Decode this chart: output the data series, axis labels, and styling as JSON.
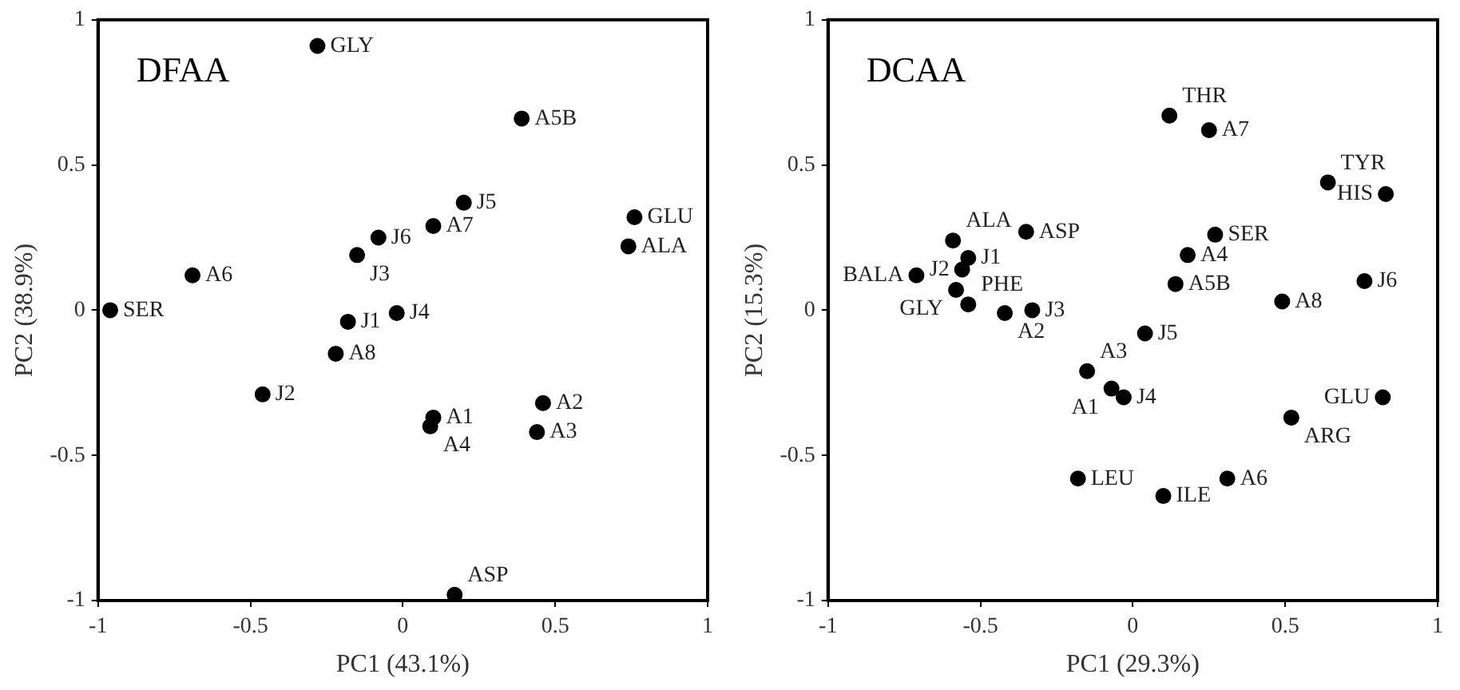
{
  "chart_data": [
    {
      "type": "scatter",
      "title": "DFAA",
      "xlabel": "PC1 (43.1%)",
      "ylabel": "PC2 (38.9%)",
      "xlim": [
        -1,
        1
      ],
      "ylim": [
        -1,
        1
      ],
      "xticks": [
        -1,
        -0.5,
        0,
        0.5,
        1
      ],
      "yticks": [
        -1,
        -0.5,
        0,
        0.5,
        1
      ],
      "grid": false,
      "legend": false,
      "marker": "circle",
      "series": [
        {
          "name": "GLY",
          "color": "#000000",
          "x": [
            -0.28
          ],
          "values": [
            0.91
          ]
        },
        {
          "name": "A5B",
          "color": "#000000",
          "x": [
            0.39
          ],
          "values": [
            0.66
          ]
        },
        {
          "name": "J5",
          "color": "#000000",
          "x": [
            0.2
          ],
          "values": [
            0.37
          ]
        },
        {
          "name": "GLU",
          "color": "#000000",
          "x": [
            0.76
          ],
          "values": [
            0.32
          ]
        },
        {
          "name": "A7",
          "color": "#000000",
          "x": [
            0.1
          ],
          "values": [
            0.29
          ]
        },
        {
          "name": "J6",
          "color": "#000000",
          "x": [
            -0.08
          ],
          "values": [
            0.25
          ]
        },
        {
          "name": "ALA",
          "color": "#000000",
          "x": [
            0.74
          ],
          "values": [
            0.22
          ]
        },
        {
          "name": "J3",
          "color": "#000000",
          "x": [
            -0.15
          ],
          "values": [
            0.19
          ]
        },
        {
          "name": "A6",
          "color": "#000000",
          "x": [
            -0.69
          ],
          "values": [
            0.12
          ]
        },
        {
          "name": "SER",
          "color": "#000000",
          "x": [
            -0.96
          ],
          "values": [
            0.0
          ]
        },
        {
          "name": "J4",
          "color": "#000000",
          "x": [
            -0.02
          ],
          "values": [
            -0.01
          ]
        },
        {
          "name": "J1",
          "color": "#000000",
          "x": [
            -0.18
          ],
          "values": [
            -0.04
          ]
        },
        {
          "name": "A8",
          "color": "#000000",
          "x": [
            -0.22
          ],
          "values": [
            -0.15
          ]
        },
        {
          "name": "J2",
          "color": "#000000",
          "x": [
            -0.46
          ],
          "values": [
            -0.29
          ]
        },
        {
          "name": "A1",
          "color": "#000000",
          "x": [
            0.1
          ],
          "values": [
            -0.37
          ]
        },
        {
          "name": "A4",
          "color": "#000000",
          "x": [
            0.09
          ],
          "values": [
            -0.4
          ]
        },
        {
          "name": "A2",
          "color": "#000000",
          "x": [
            0.46
          ],
          "values": [
            -0.32
          ]
        },
        {
          "name": "A3",
          "color": "#000000",
          "x": [
            0.44
          ],
          "values": [
            -0.42
          ]
        },
        {
          "name": "ASP",
          "color": "#000000",
          "x": [
            0.17
          ],
          "values": [
            -0.98
          ]
        }
      ]
    },
    {
      "type": "scatter",
      "title": "DCAA",
      "xlabel": "PC1 (29.3%)",
      "ylabel": "PC2 (15.3%)",
      "xlim": [
        -1,
        1
      ],
      "ylim": [
        -1,
        1
      ],
      "xticks": [
        -1,
        -0.5,
        0,
        0.5,
        1
      ],
      "yticks": [
        -1,
        -0.5,
        0,
        0.5,
        1
      ],
      "grid": false,
      "legend": false,
      "marker": "circle",
      "series": [
        {
          "name": "THR",
          "color": "#000000",
          "x": [
            0.12
          ],
          "values": [
            0.67
          ]
        },
        {
          "name": "A7",
          "color": "#000000",
          "x": [
            0.25
          ],
          "values": [
            0.62
          ]
        },
        {
          "name": "TYR",
          "color": "#000000",
          "x": [
            0.64
          ],
          "values": [
            0.44
          ]
        },
        {
          "name": "HIS",
          "color": "#000000",
          "x": [
            0.83
          ],
          "values": [
            0.4
          ]
        },
        {
          "name": "ASP",
          "color": "#000000",
          "x": [
            -0.35
          ],
          "values": [
            0.27
          ]
        },
        {
          "name": "SER",
          "color": "#000000",
          "x": [
            0.27
          ],
          "values": [
            0.26
          ]
        },
        {
          "name": "ALA",
          "color": "#000000",
          "x": [
            -0.59
          ],
          "values": [
            0.24
          ]
        },
        {
          "name": "A4",
          "color": "#000000",
          "x": [
            0.18
          ],
          "values": [
            0.19
          ]
        },
        {
          "name": "J1",
          "color": "#000000",
          "x": [
            -0.54
          ],
          "values": [
            0.18
          ]
        },
        {
          "name": "J2",
          "color": "#000000",
          "x": [
            -0.56
          ],
          "values": [
            0.14
          ]
        },
        {
          "name": "BALA",
          "color": "#000000",
          "x": [
            -0.71
          ],
          "values": [
            0.12
          ]
        },
        {
          "name": "A5B",
          "color": "#000000",
          "x": [
            0.14
          ],
          "values": [
            0.09
          ]
        },
        {
          "name": "J6",
          "color": "#000000",
          "x": [
            0.76
          ],
          "values": [
            0.1
          ]
        },
        {
          "name": "GLY",
          "color": "#000000",
          "x": [
            -0.58
          ],
          "values": [
            0.07
          ]
        },
        {
          "name": "PHE",
          "color": "#000000",
          "x": [
            -0.54
          ],
          "values": [
            0.02
          ]
        },
        {
          "name": "A8",
          "color": "#000000",
          "x": [
            0.49
          ],
          "values": [
            0.03
          ]
        },
        {
          "name": "A2",
          "color": "#000000",
          "x": [
            -0.42
          ],
          "values": [
            -0.01
          ]
        },
        {
          "name": "J3",
          "color": "#000000",
          "x": [
            -0.33
          ],
          "values": [
            0.0
          ]
        },
        {
          "name": "J5",
          "color": "#000000",
          "x": [
            0.04
          ],
          "values": [
            -0.08
          ]
        },
        {
          "name": "A3",
          "color": "#000000",
          "x": [
            -0.15
          ],
          "values": [
            -0.21
          ]
        },
        {
          "name": "A1",
          "color": "#000000",
          "x": [
            -0.07
          ],
          "values": [
            -0.27
          ]
        },
        {
          "name": "J4",
          "color": "#000000",
          "x": [
            -0.03
          ],
          "values": [
            -0.3
          ]
        },
        {
          "name": "GLU",
          "color": "#000000",
          "x": [
            0.82
          ],
          "values": [
            -0.3
          ]
        },
        {
          "name": "ARG",
          "color": "#000000",
          "x": [
            0.52
          ],
          "values": [
            -0.37
          ]
        },
        {
          "name": "LEU",
          "color": "#000000",
          "x": [
            -0.18
          ],
          "values": [
            -0.58
          ]
        },
        {
          "name": "A6",
          "color": "#000000",
          "x": [
            0.31
          ],
          "values": [
            -0.58
          ]
        },
        {
          "name": "ILE",
          "color": "#000000",
          "x": [
            0.1
          ],
          "values": [
            -0.64
          ]
        }
      ]
    }
  ]
}
